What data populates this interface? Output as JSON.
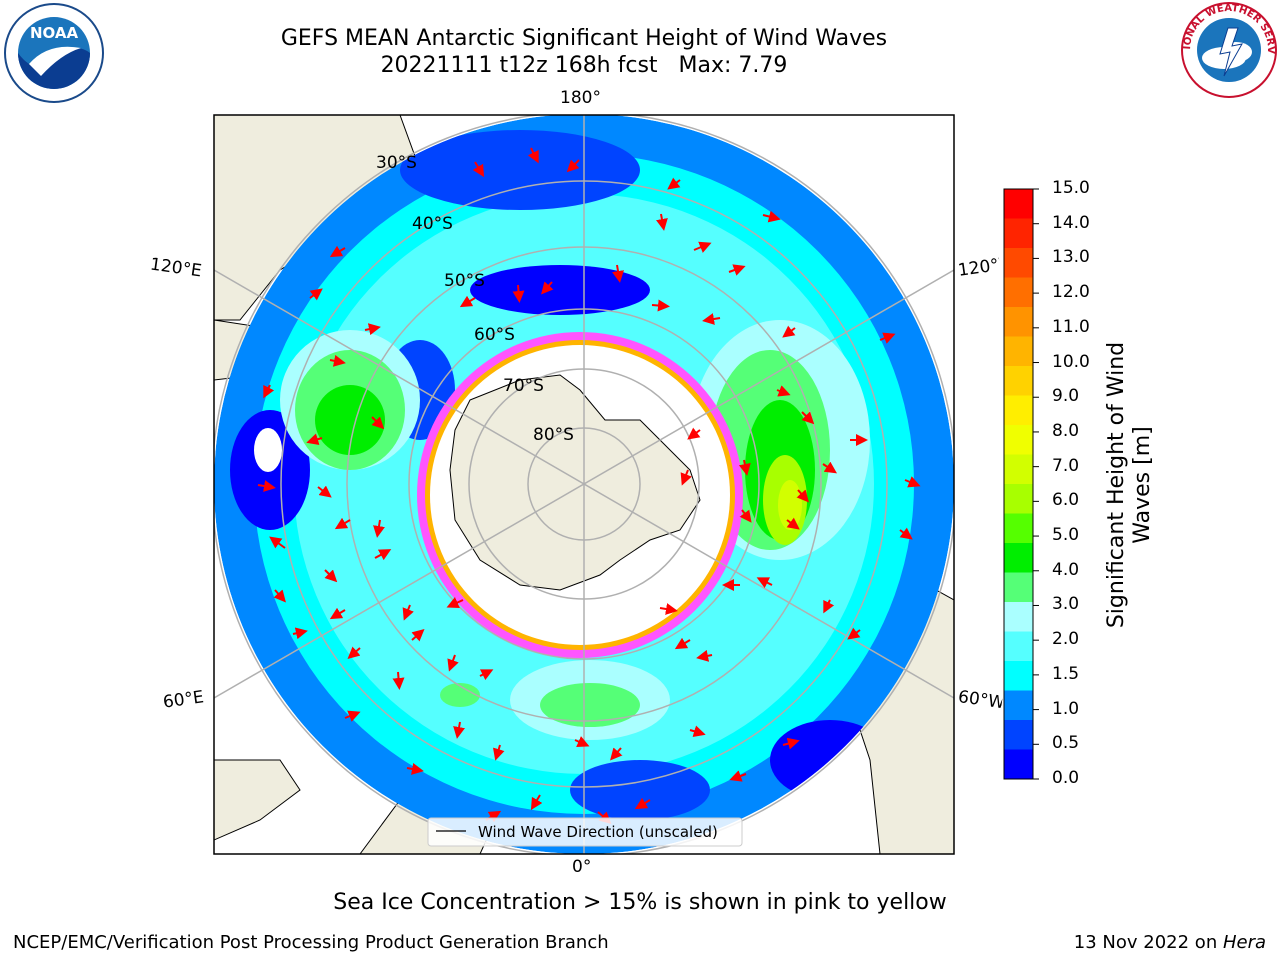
{
  "title": {
    "line1": "GEFS MEAN Antarctic Significant Height of Wind Waves",
    "date_run": "20221111 t12z 168h fcst",
    "max_label": "Max: 7.79"
  },
  "map": {
    "lon_labels": {
      "top": "180°",
      "bottom": "0°",
      "left_upper": "120°E",
      "left_lower": "60°E",
      "right_upper": "120°W",
      "right_lower": "60°W"
    },
    "lat_labels": [
      "30°S",
      "40°S",
      "50°S",
      "60°S",
      "70°S",
      "80°S"
    ],
    "legend": "Wind Wave Direction (unscaled)"
  },
  "colorbar": {
    "label": "Significant Height of Wind Waves [m]",
    "ticks": [
      "15.0",
      "14.0",
      "13.0",
      "12.0",
      "11.0",
      "10.0",
      "9.0",
      "8.0",
      "7.0",
      "6.0",
      "5.0",
      "4.0",
      "3.0",
      "2.0",
      "1.5",
      "1.0",
      "0.5",
      "0.0"
    ],
    "colors": [
      "#ff0000",
      "#ff2400",
      "#ff4a00",
      "#ff6f00",
      "#ff9300",
      "#ffb400",
      "#ffd200",
      "#ffee00",
      "#f0ff00",
      "#d2ff00",
      "#a8ff00",
      "#55ff00",
      "#00ee00",
      "#55ff77",
      "#aaffff",
      "#55ffff",
      "#00ffff",
      "#0088ff",
      "#0044ff",
      "#0000ff"
    ]
  },
  "note": "Sea Ice Concentration > 15% is shown in pink to yellow",
  "footer": {
    "left": "NCEP/EMC/Verification Post Processing Product Generation Branch",
    "right_prefix": "13 Nov 2022 on ",
    "right_italic": "Hera"
  },
  "logos": {
    "left": "NOAA",
    "right": "NATIONAL WEATHER SERVICE"
  }
}
